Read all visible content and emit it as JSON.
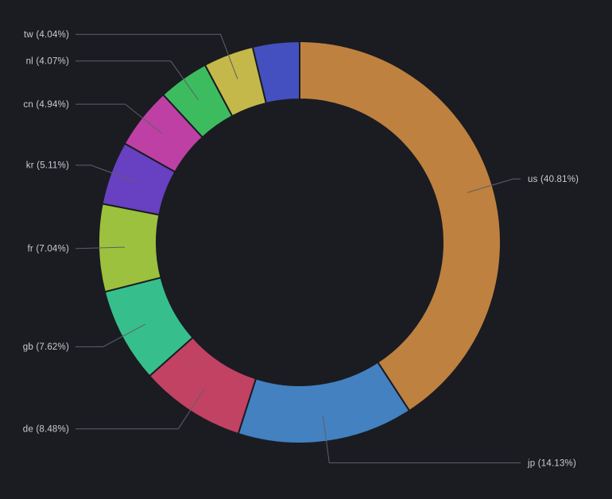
{
  "panel": {
    "background": "#1a1c22"
  },
  "chart_data": {
    "type": "pie",
    "subtype": "donut",
    "title": "",
    "legend_position": "none",
    "labels_style": "outside-with-leader-lines",
    "background": "#1a1c22",
    "label_color": "#c9cbd1",
    "line_color": "#5d6067",
    "slices": [
      {
        "id": "us",
        "value": 40.81,
        "display": "us (40.81%)",
        "color": "#bf813f",
        "labeled": true
      },
      {
        "id": "jp",
        "value": 14.13,
        "display": "jp (14.13%)",
        "color": "#4381c1",
        "labeled": true
      },
      {
        "id": "de",
        "value": 8.48,
        "display": "de (8.48%)",
        "color": "#c24263",
        "labeled": true
      },
      {
        "id": "gb",
        "value": 7.62,
        "display": "gb (7.62%)",
        "color": "#36bf8d",
        "labeled": true
      },
      {
        "id": "fr",
        "value": 7.04,
        "display": "fr (7.04%)",
        "color": "#9cc13e",
        "labeled": true
      },
      {
        "id": "kr",
        "value": 5.11,
        "display": "kr (5.11%)",
        "color": "#6741c1",
        "labeled": true
      },
      {
        "id": "cn",
        "value": 4.94,
        "display": "cn (4.94%)",
        "color": "#bf40a4",
        "labeled": true
      },
      {
        "id": "nl",
        "value": 4.07,
        "display": "nl (4.07%)",
        "color": "#3dbc5f",
        "labeled": true
      },
      {
        "id": "tw",
        "value": 4.04,
        "display": "tw (4.04%)",
        "color": "#c4b84a",
        "labeled": true
      },
      {
        "id": "",
        "value": 3.76,
        "display": "",
        "color": "#4450c0",
        "labeled": false
      }
    ]
  }
}
